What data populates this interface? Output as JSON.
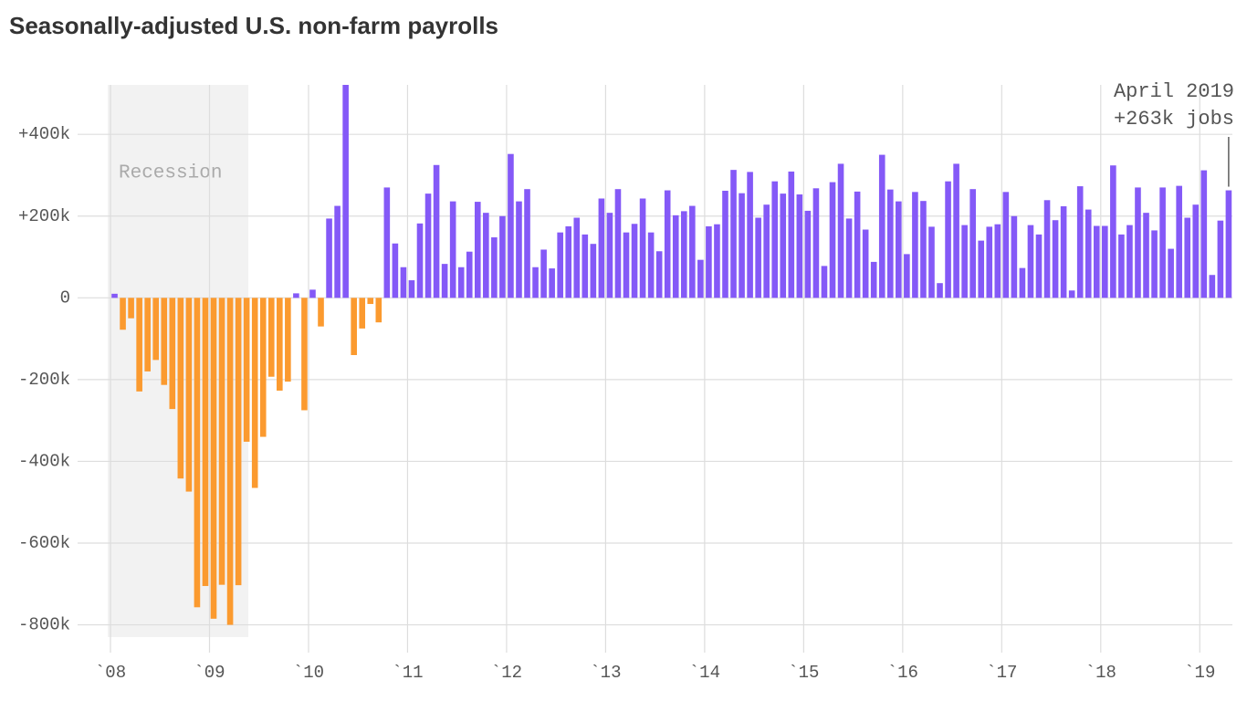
{
  "chart_data": {
    "type": "bar",
    "title": "Seasonally-adjusted U.S. non-farm payrolls",
    "annotation": [
      "April 2019",
      "+263k jobs"
    ],
    "shaded_region_label": "Recession",
    "colors": {
      "positive": "#8459f7",
      "negative": "#fb9a2f"
    },
    "categories": [
      null,
      null,
      null,
      null,
      null,
      null,
      null,
      null,
      null,
      null,
      null,
      null,
      null,
      null,
      null,
      null,
      null,
      null,
      null,
      null,
      null,
      null,
      null,
      null,
      null,
      null,
      null,
      null,
      null,
      null,
      null,
      null,
      null,
      null,
      null,
      null,
      null,
      null,
      null,
      null,
      null,
      null,
      null,
      null,
      null,
      null,
      null,
      null,
      null,
      null,
      null,
      null,
      null,
      null,
      null,
      null,
      null,
      null,
      null,
      null,
      null,
      null,
      null,
      null,
      null,
      null,
      null,
      null,
      null,
      null,
      null,
      null,
      null,
      null,
      null,
      null,
      null,
      null,
      null,
      null,
      null,
      null,
      null,
      null,
      null,
      null,
      null,
      null,
      null,
      null,
      null,
      null,
      null,
      null,
      null,
      null,
      null,
      null,
      null,
      null,
      null,
      null,
      null,
      null,
      null,
      null,
      null,
      null,
      null,
      null,
      null,
      null,
      null,
      null,
      null,
      null,
      null,
      null,
      null,
      null,
      null,
      null,
      null,
      null,
      null,
      null,
      null,
      null,
      null,
      null,
      null,
      null,
      null,
      null,
      null,
      null
    ],
    "values": [
      10,
      -78,
      -50,
      -229,
      -180,
      -152,
      -213,
      -272,
      -442,
      -474,
      -757,
      -705,
      -785,
      -702,
      -800,
      -703,
      -352,
      -465,
      -340,
      -193,
      -227,
      -205,
      11,
      -275,
      20,
      -70,
      194,
      225,
      521,
      -140,
      -75,
      -15,
      -60,
      270,
      133,
      75,
      43,
      182,
      255,
      325,
      83,
      236,
      75,
      113,
      235,
      208,
      148,
      200,
      352,
      236,
      266,
      75,
      118,
      72,
      160,
      175,
      196,
      155,
      132,
      243,
      208,
      266,
      160,
      181,
      243,
      160,
      114,
      263,
      202,
      212,
      225,
      93,
      175,
      180,
      262,
      313,
      256,
      308,
      196,
      228,
      285,
      255,
      309,
      253,
      213,
      268,
      78,
      283,
      328,
      194,
      260,
      167,
      88,
      350,
      265,
      236,
      107,
      259,
      237,
      174,
      36,
      285,
      328,
      178,
      266,
      140,
      174,
      180,
      259,
      200,
      73,
      178,
      155,
      239,
      190,
      224,
      18,
      273,
      216,
      176,
      176,
      324,
      155,
      178,
      270,
      208,
      165,
      270,
      120,
      274,
      196,
      228,
      312,
      56,
      189,
      263
    ],
    "ylim": [
      -830,
      521
    ],
    "yticks": [
      {
        "value": 400,
        "label": "+400k"
      },
      {
        "value": 200,
        "label": "+200k"
      },
      0,
      {
        "value": -200,
        "label": "-200k"
      },
      {
        "value": -400,
        "label": "-400k"
      },
      {
        "value": -600,
        "label": "-600k"
      },
      {
        "value": -800,
        "label": "-800k"
      }
    ],
    "xticks": [
      {
        "value": 2008,
        "label": "`08"
      },
      {
        "value": 2009,
        "label": "`09"
      },
      {
        "value": 2010,
        "label": "`10"
      },
      {
        "value": 2011,
        "label": "`11"
      },
      {
        "value": 2012,
        "label": "`12"
      },
      {
        "value": 2013,
        "label": "`13"
      },
      {
        "value": 2014,
        "label": "`14"
      },
      {
        "value": 2015,
        "label": "`15"
      },
      {
        "value": 2016,
        "label": "`16"
      },
      {
        "value": 2017,
        "label": "`17"
      },
      {
        "value": 2018,
        "label": "`18"
      },
      {
        "value": 2019,
        "label": "`19"
      }
    ],
    "grid": true
  }
}
